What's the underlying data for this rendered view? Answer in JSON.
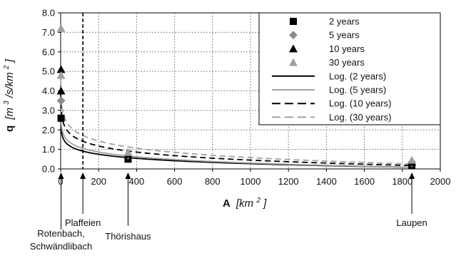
{
  "chart_data": {
    "type": "scatter",
    "xlabel": {
      "main": "A",
      "unit": "[km",
      "sup": "2",
      "close": "]"
    },
    "ylabel": {
      "main": "q",
      "unit1": "[m",
      "sup1": "3",
      "unit2": "/s/km",
      "sup2": "2",
      "close": "]"
    },
    "xlim": [
      0,
      2000
    ],
    "ylim": [
      0,
      8
    ],
    "x_ticks": [
      "0",
      "200",
      "400",
      "600",
      "800",
      "1000",
      "1200",
      "1400",
      "1600",
      "1800",
      "2000"
    ],
    "y_ticks": [
      "0.0",
      "1.0",
      "2.0",
      "3.0",
      "4.0",
      "5.0",
      "6.0",
      "7.0",
      "8.0"
    ],
    "grid": true,
    "legend_position": "top-right",
    "vertical_line": {
      "x": 117,
      "style": "dashed"
    },
    "series": [
      {
        "name": "2 years",
        "marker": "square",
        "color": "#000000",
        "points": [
          [
            2,
            2.6
          ],
          [
            355,
            0.5
          ],
          [
            1850,
            0.2
          ]
        ]
      },
      {
        "name": "5 years",
        "marker": "diamond",
        "color": "#8c8c8c",
        "points": [
          [
            2,
            3.5
          ],
          [
            355,
            0.7
          ],
          [
            1850,
            0.3
          ]
        ]
      },
      {
        "name": "10 years",
        "marker": "triangle",
        "color": "#000000",
        "points": [
          [
            2,
            4.0
          ],
          [
            2,
            5.1
          ],
          [
            355,
            0.75
          ],
          [
            1850,
            0.35
          ]
        ]
      },
      {
        "name": "30 years",
        "marker": "triangle",
        "color": "#a0a0a0",
        "points": [
          [
            2,
            4.8
          ],
          [
            2,
            7.2
          ],
          [
            355,
            0.85
          ],
          [
            1850,
            0.45
          ]
        ]
      }
    ],
    "trendlines": [
      {
        "name": "Log. (2 years)",
        "style": "solid",
        "color": "#000000",
        "a": 2.34,
        "b": 0.3
      },
      {
        "name": "Log. (5 years)",
        "style": "solid",
        "color": "#a0a0a0",
        "a": 2.72,
        "b": 0.35
      },
      {
        "name": "Log. (10 years)",
        "style": "dashed",
        "color": "#000000",
        "a": 3.56,
        "b": 0.45
      },
      {
        "name": "Log. (30 years)",
        "style": "dashed",
        "color": "#a0a0a0",
        "a": 4.24,
        "b": 0.53
      }
    ],
    "annotations": [
      {
        "lines": [
          "Rotenbach,",
          "Schwändlibach"
        ],
        "x": 2
      },
      {
        "lines": [
          "Plaffeien"
        ],
        "x": 117
      },
      {
        "lines": [
          "Thörishaus"
        ],
        "x": 355
      },
      {
        "lines": [
          "Laupen"
        ],
        "x": 1850
      }
    ]
  }
}
